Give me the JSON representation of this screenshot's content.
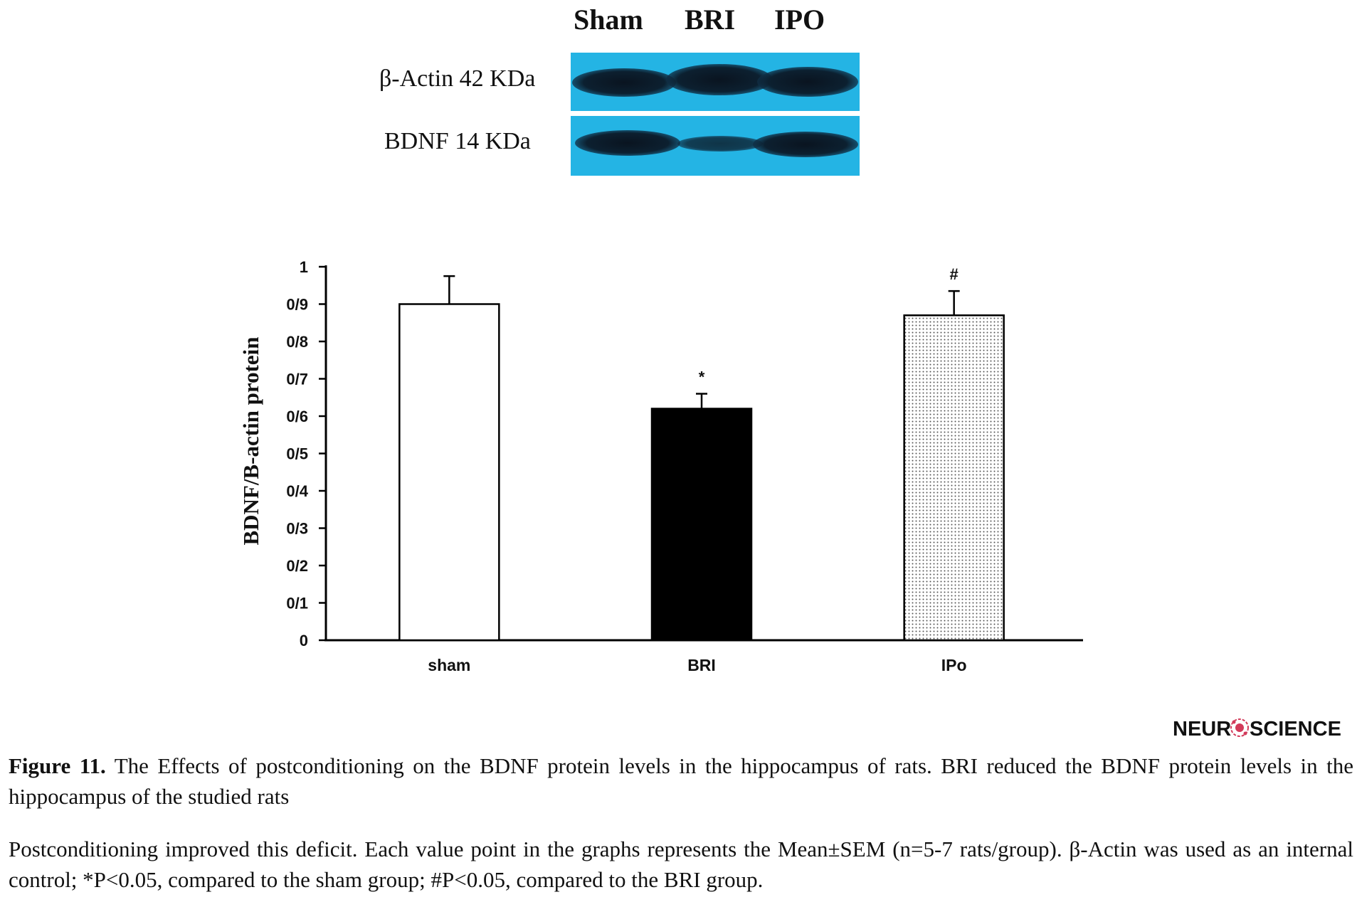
{
  "blot": {
    "lanes": [
      "Sham",
      "BRI",
      "IPO"
    ],
    "bands": [
      {
        "label": "β-Actin 42 KDa"
      },
      {
        "label": "BDNF 14 KDa"
      }
    ]
  },
  "chart_data": {
    "type": "bar",
    "categories": [
      "sham",
      "BRI",
      "IPo"
    ],
    "values": [
      0.9,
      0.62,
      0.87
    ],
    "errors": [
      0.075,
      0.04,
      0.065
    ],
    "annotations": [
      "",
      "*",
      "#"
    ],
    "fills": [
      "white",
      "black",
      "dotted"
    ],
    "ylabel": "BDNF/B-actin protein",
    "ylim": [
      0,
      1
    ],
    "yticks": [
      "0",
      "0/1",
      "0/2",
      "0/3",
      "0/4",
      "0/5",
      "0/6",
      "0/7",
      "0/8",
      "0/9",
      "1"
    ],
    "grid": false,
    "legend": "none"
  },
  "logo": {
    "text_left": "NEUR",
    "text_right": "SCIENCE"
  },
  "caption": {
    "figure_label": "Figure 11.",
    "text": "The Effects of postconditioning on the BDNF protein levels in the hippocampus of rats. BRI reduced the BDNF protein levels in the hippocampus of the studied rats",
    "note": "Postconditioning improved this deficit. Each value point in the graphs represents the Mean±SEM (n=5-7 rats/group). β-Actin was used as an internal control; *P<0.05, compared to the sham group; #P<0.05, compared to the BRI group."
  },
  "colors": {
    "blot_background": "#24b4e4",
    "band": "#0c1a26",
    "bar_outline": "#000000"
  }
}
